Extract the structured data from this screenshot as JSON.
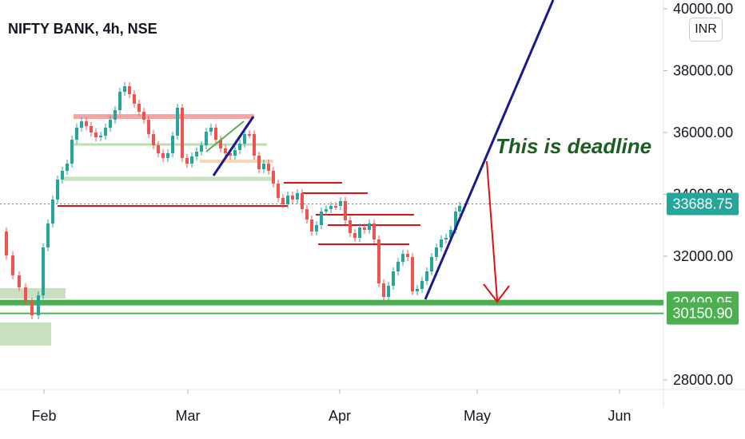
{
  "header": {
    "title": "NIFTY BANK, 4h, NSE",
    "currency": "INR"
  },
  "chart_data": {
    "type": "candlestick",
    "title": "NIFTY BANK, 4h, NSE",
    "ylim": [
      27500,
      40200
    ],
    "y_ticks": [
      {
        "value": 40000,
        "label": "40000.00"
      },
      {
        "value": 38000,
        "label": "38000.00"
      },
      {
        "value": 36000,
        "label": "36000.00"
      },
      {
        "value": 34000,
        "label": "34000.00"
      },
      {
        "value": 32000,
        "label": "32000.00"
      },
      {
        "value": 28000,
        "label": "28000.00"
      }
    ],
    "x_ticks": [
      "Feb",
      "Mar",
      "Apr",
      "May",
      "Jun"
    ],
    "price_badges": [
      {
        "label": "33688.75",
        "value": 33688.75,
        "color": "#26a69a"
      },
      {
        "label": "30499.95",
        "value": 30499.95,
        "color": "#4caf50"
      },
      {
        "label": "30150.90",
        "value": 30150.9,
        "color": "#4caf50"
      }
    ],
    "last_price": 33688.75,
    "support_levels": [
      30499.95,
      30150.9
    ],
    "annotation": "This is deadline",
    "colors": {
      "up": "#26a69a",
      "down": "#ef5350",
      "trendline": "#1a1a8c",
      "arrow": "#e01010",
      "support": "#4caf50"
    }
  }
}
